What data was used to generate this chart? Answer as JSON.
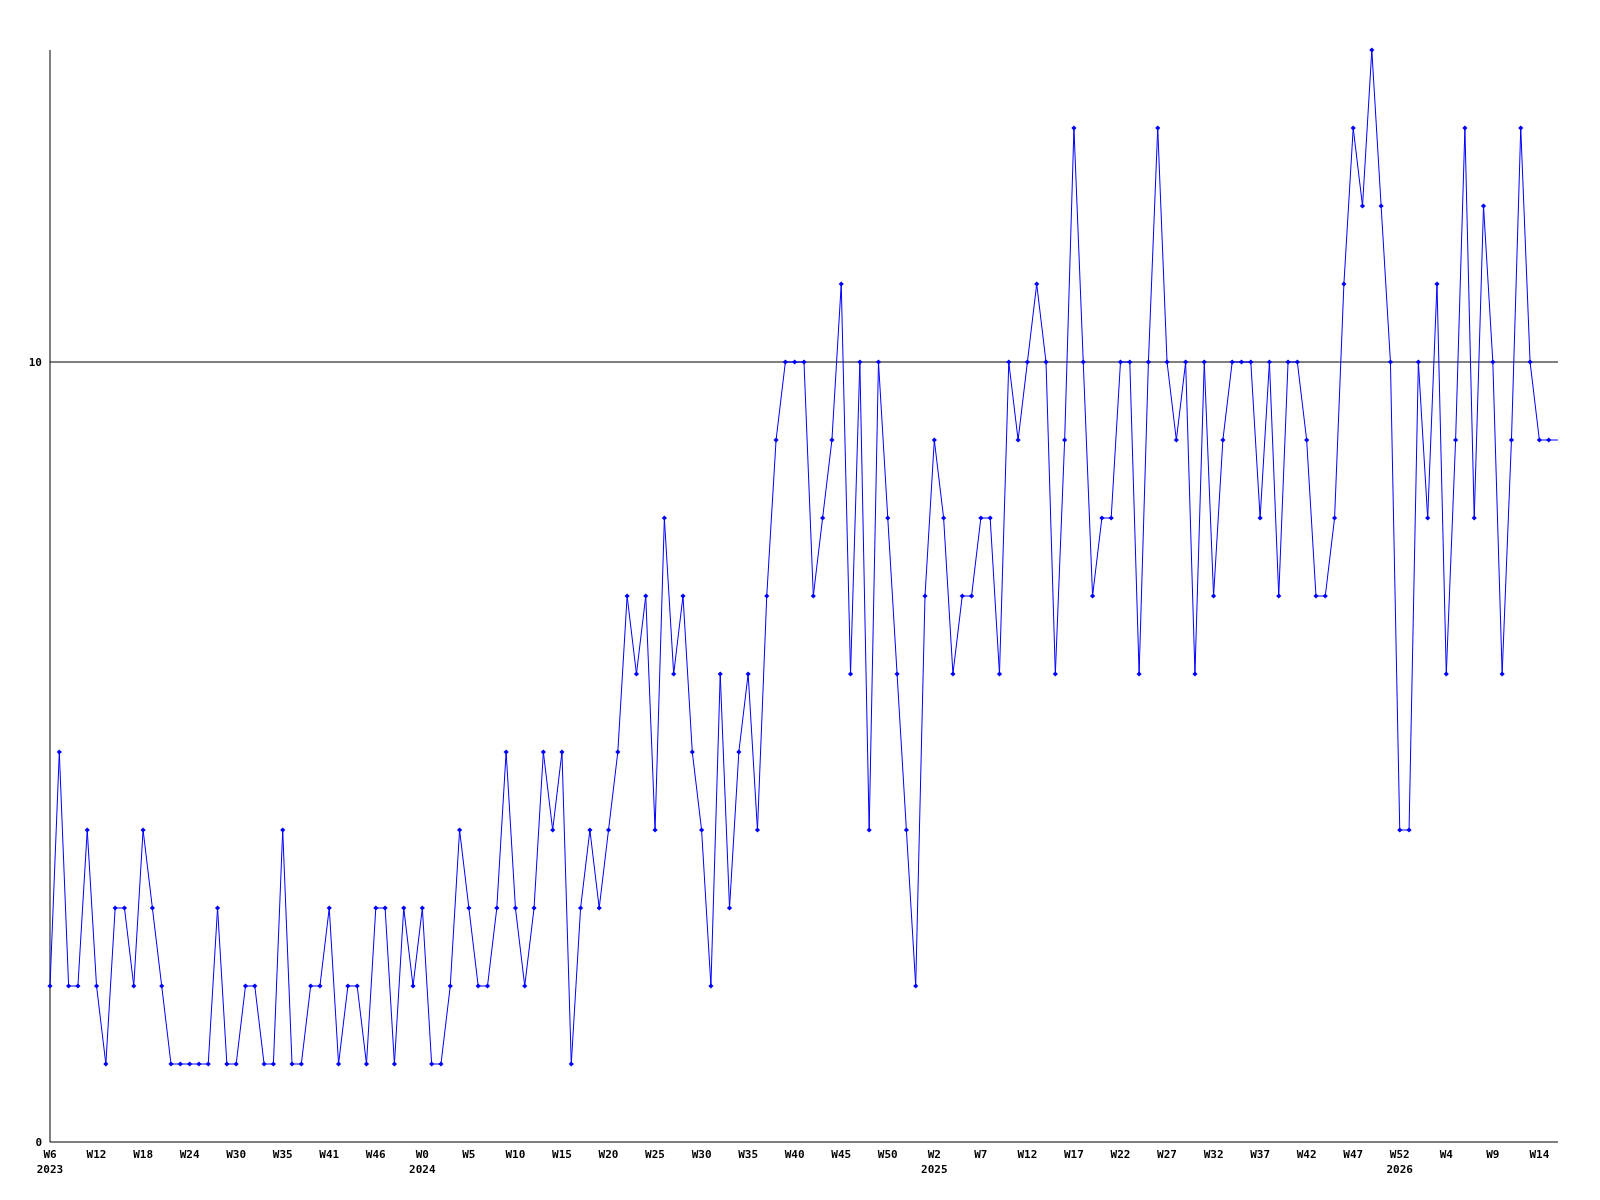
{
  "chart_data": {
    "type": "line",
    "categories": [
      "W6\n2023",
      null,
      null,
      null,
      null,
      "W12",
      null,
      null,
      null,
      null,
      "W18",
      null,
      null,
      null,
      null,
      "W24",
      null,
      null,
      null,
      null,
      "W30",
      null,
      null,
      null,
      null,
      "W35",
      null,
      null,
      null,
      null,
      "W41",
      null,
      null,
      null,
      null,
      "W46",
      null,
      null,
      null,
      null,
      "W0\n2024",
      null,
      null,
      null,
      null,
      "W5",
      null,
      null,
      null,
      null,
      "W10",
      null,
      null,
      null,
      null,
      "W15",
      null,
      null,
      null,
      null,
      "W20",
      null,
      null,
      null,
      null,
      "W25",
      null,
      null,
      null,
      null,
      "W30",
      null,
      null,
      null,
      null,
      "W35",
      null,
      null,
      null,
      null,
      "W40",
      null,
      null,
      null,
      null,
      "W45",
      null,
      null,
      null,
      null,
      "W50",
      null,
      null,
      null,
      null,
      "W2\n2025",
      null,
      null,
      null,
      null,
      "W7",
      null,
      null,
      null,
      null,
      "W12",
      null,
      null,
      null,
      null,
      "W17",
      null,
      null,
      null,
      null,
      "W22",
      null,
      null,
      null,
      null,
      "W27",
      null,
      null,
      null,
      null,
      "W32",
      null,
      null,
      null,
      null,
      "W37",
      null,
      null,
      null,
      null,
      "W42",
      null,
      null,
      null,
      null,
      "W47",
      null,
      null,
      null,
      null,
      "W52\n2026",
      null,
      null,
      null,
      null,
      "W4",
      null,
      null,
      null,
      null,
      "W9",
      null,
      null,
      null,
      null,
      "W14",
      null,
      null
    ],
    "series": [
      {
        "color": "#0000ff",
        "values": [
          2,
          5,
          2,
          2,
          4,
          2,
          1,
          3,
          3,
          2,
          4,
          3,
          2,
          1,
          1,
          1,
          1,
          1,
          3,
          1,
          1,
          2,
          2,
          1,
          1,
          4,
          1,
          1,
          2,
          2,
          3,
          1,
          2,
          2,
          1,
          3,
          3,
          1,
          3,
          2,
          3,
          1,
          1,
          2,
          4,
          3,
          2,
          2,
          3,
          5,
          3,
          2,
          3,
          5,
          4,
          5,
          1,
          3,
          4,
          3,
          4,
          5,
          7,
          6,
          7,
          4,
          8,
          6,
          7,
          5,
          4,
          2,
          6,
          3,
          5,
          6,
          4,
          7,
          9,
          10,
          10,
          10,
          7,
          8,
          9,
          11,
          6,
          10,
          4,
          10,
          8,
          6,
          4,
          2,
          7,
          9,
          8,
          6,
          7,
          7,
          8,
          8,
          6,
          10,
          9,
          10,
          11,
          10,
          6,
          9,
          13,
          10,
          7,
          8,
          8,
          10,
          10,
          6,
          10,
          13,
          10,
          9,
          10,
          6,
          10,
          7,
          9,
          10,
          10,
          10,
          8,
          10,
          7,
          10,
          10,
          9,
          7,
          7,
          8,
          11,
          13,
          12,
          14,
          12,
          10,
          4,
          4,
          10,
          8,
          11,
          6,
          9,
          13,
          8,
          12,
          10,
          6,
          9,
          13,
          10,
          9,
          9,
          9
        ]
      }
    ],
    "ylim": [
      0,
      14
    ],
    "yticks": [
      0,
      10
    ],
    "grid": "y",
    "marker": "diamond",
    "line_style": "solid"
  }
}
